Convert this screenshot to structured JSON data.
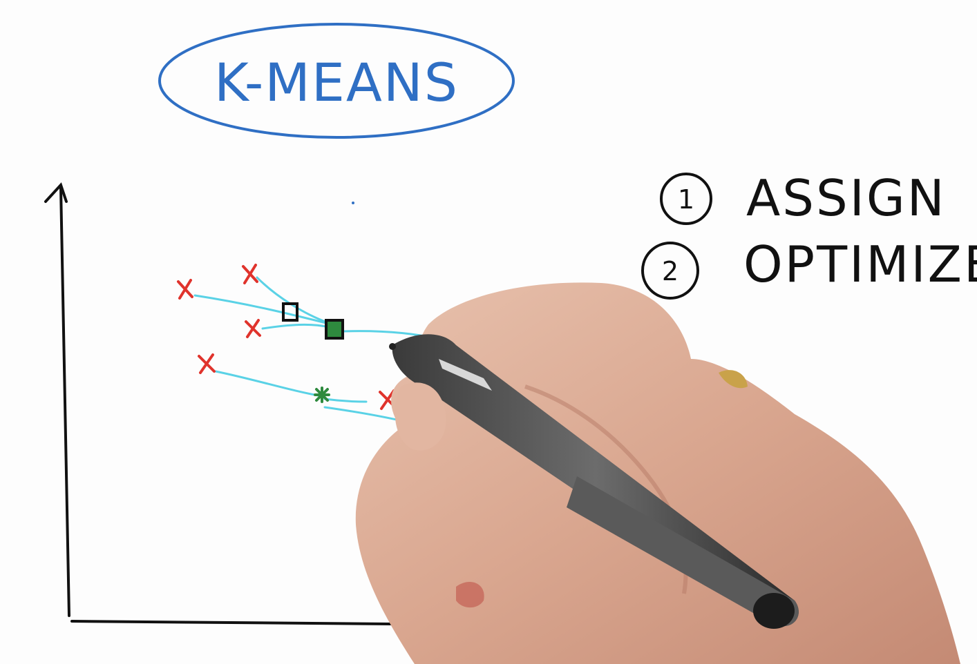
{
  "title": "K-MEANS",
  "steps": [
    {
      "number": "1",
      "label": "ASSIGN"
    },
    {
      "number": "2",
      "label": "OPTIMIZE"
    }
  ],
  "colors": {
    "title_ink": "#2f6fc4",
    "axis_ink": "#111111",
    "point_ink": "#e0332c",
    "assignment_line": "#5ad2e6",
    "centroid_upper": "#111111",
    "centroid_lower": "#2e8a3e",
    "text_ink": "#111111"
  },
  "diagram": {
    "points": "red-x-marks",
    "centroids": "square-markers",
    "hand": "hand-holding-pen"
  }
}
